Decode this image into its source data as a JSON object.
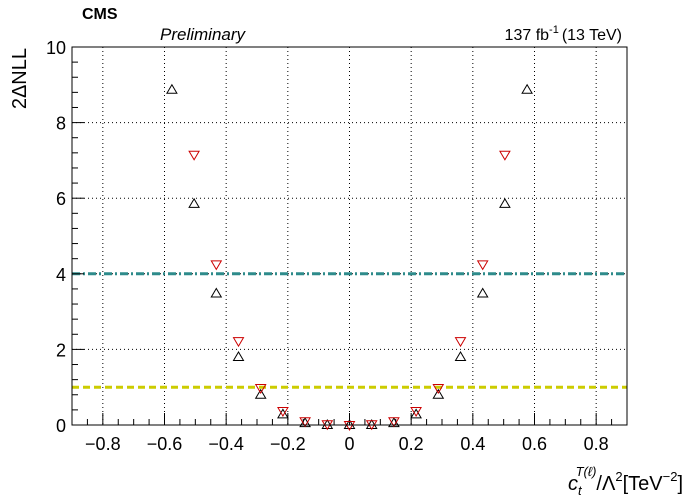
{
  "header": {
    "experiment": "CMS",
    "status": "Preliminary",
    "lumi": "137 fb",
    "lumi_exp": "-1",
    "energy": "(13 TeV)"
  },
  "chart_data": {
    "type": "scatter",
    "ylabel": "2ΔNLL",
    "xlabel": {
      "base": "c",
      "sub": "t",
      "sup": "T(ℓ)",
      "middle": "/Λ",
      "middle_sup": "2",
      "unit": "[TeV",
      "unit_sup": "−2",
      "unit_end": "]"
    },
    "xlim": [
      -0.9,
      0.9
    ],
    "ylim": [
      0,
      10
    ],
    "x_ticks": [
      -0.8,
      -0.6,
      -0.4,
      -0.2,
      0,
      0.2,
      0.4,
      0.6,
      0.8
    ],
    "x_tick_labels": [
      "−0.8",
      "−0.6",
      "−0.4",
      "−0.2",
      "0",
      "0.2",
      "0.4",
      "0.6",
      "0.8"
    ],
    "y_ticks": [
      0,
      2,
      4,
      6,
      8,
      10
    ],
    "y_tick_labels": [
      "0",
      "2",
      "4",
      "6",
      "8",
      "10"
    ],
    "grid": true,
    "series": [
      {
        "marker": "triangle-up",
        "color": "#000000",
        "x": [
          -0.576,
          -0.504,
          -0.432,
          -0.36,
          -0.288,
          -0.216,
          -0.144,
          -0.072,
          0,
          0.072,
          0.144,
          0.216,
          0.288,
          0.36,
          0.432,
          0.504,
          0.576
        ],
        "y": [
          8.87,
          5.85,
          3.48,
          1.8,
          0.8,
          0.28,
          0.05,
          0.0,
          0.0,
          0.0,
          0.05,
          0.28,
          0.8,
          1.8,
          3.48,
          5.85,
          8.87
        ]
      },
      {
        "marker": "triangle-down",
        "color": "#cc0000",
        "x": [
          -0.504,
          -0.432,
          -0.36,
          -0.288,
          -0.216,
          -0.144,
          -0.072,
          0,
          0.072,
          0.144,
          0.216,
          0.288,
          0.36,
          0.432,
          0.504
        ],
        "y": [
          7.15,
          4.25,
          2.22,
          0.98,
          0.37,
          0.1,
          0.02,
          0.0,
          0.02,
          0.1,
          0.37,
          0.98,
          2.22,
          4.25,
          7.15
        ]
      }
    ],
    "reference_lines": [
      {
        "y": 4,
        "color": "#2e8b8b",
        "style": "dash-dot"
      },
      {
        "y": 1,
        "color": "#cccc00",
        "style": "dashed"
      }
    ]
  }
}
